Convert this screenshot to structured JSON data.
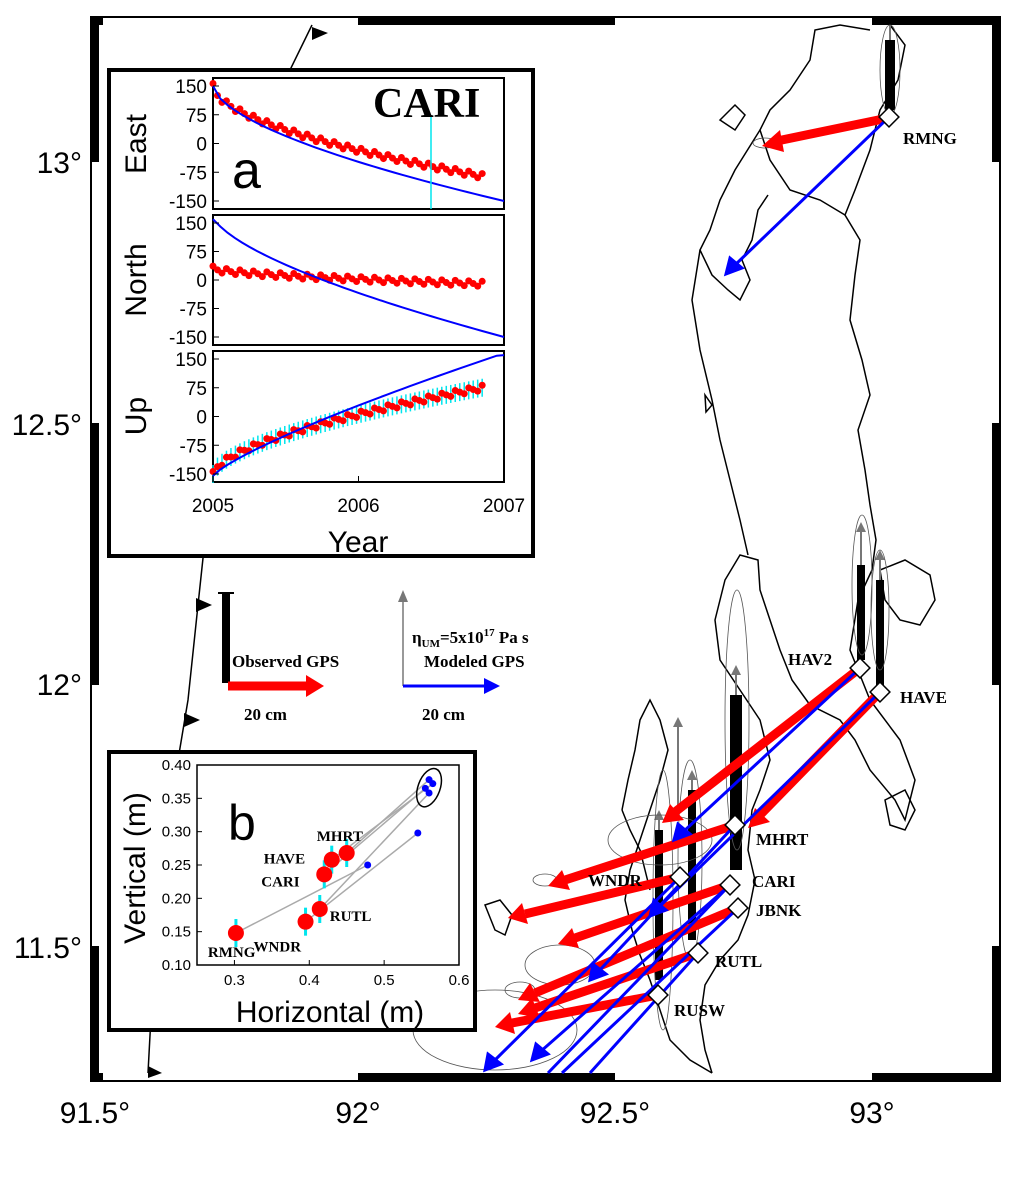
{
  "map": {
    "x_ticks": [
      "91.5°",
      "92°",
      "92.5°",
      "93°"
    ],
    "y_ticks": [
      "13°",
      "12.5°",
      "12°",
      "11.5°"
    ],
    "stations": [
      {
        "name": "RMNG"
      },
      {
        "name": "HAV2"
      },
      {
        "name": "HAVE"
      },
      {
        "name": "MHRT"
      },
      {
        "name": "WNDR"
      },
      {
        "name": "CARI"
      },
      {
        "name": "JBNK"
      },
      {
        "name": "RUTL"
      },
      {
        "name": "RUSW"
      }
    ],
    "colors": {
      "observed": "#ff0000",
      "modeled": "#0000ff",
      "errorbar": "#00e5ee",
      "vertical": "#000000"
    }
  },
  "legend": {
    "observed_label": "Observed GPS",
    "observed_scale": "20 cm",
    "model_eta": "η",
    "model_eta_sub": "UM",
    "model_eq": "=5x10",
    "model_exp": "17",
    "model_unit": " Pa s",
    "modeled_label": "Modeled GPS",
    "modeled_scale": "20 cm"
  },
  "inset_a": {
    "panel_letter": "a",
    "station": "CARI",
    "panels": [
      "East",
      "North",
      "Up"
    ],
    "y_ticks": [
      "150",
      "75",
      "0",
      "-75",
      "-150"
    ],
    "x_ticks": [
      "2005",
      "2006",
      "2007"
    ],
    "x_label": "Year"
  },
  "inset_b": {
    "panel_letter": "b",
    "x_label": "Horizontal (m)",
    "y_label": "Vertical (m)",
    "x_ticks": [
      "0.3",
      "0.4",
      "0.5",
      "0.6"
    ],
    "y_ticks": [
      "0.40",
      "0.35",
      "0.30",
      "0.25",
      "0.20",
      "0.15",
      "0.10"
    ],
    "observed": [
      {
        "name": "MHRT",
        "h": 0.45,
        "v": 0.268
      },
      {
        "name": "HAVE",
        "h": 0.43,
        "v": 0.258
      },
      {
        "name": "CARI",
        "h": 0.42,
        "v": 0.236
      },
      {
        "name": "RUTL",
        "h": 0.414,
        "v": 0.184
      },
      {
        "name": "WNDR",
        "h": 0.395,
        "v": 0.165
      },
      {
        "name": "RMNG",
        "h": 0.302,
        "v": 0.148
      }
    ],
    "modeled": [
      {
        "h": 0.56,
        "v": 0.378
      },
      {
        "h": 0.565,
        "v": 0.372
      },
      {
        "h": 0.555,
        "v": 0.365
      },
      {
        "h": 0.56,
        "v": 0.358
      },
      {
        "h": 0.545,
        "v": 0.298
      },
      {
        "h": 0.478,
        "v": 0.25
      }
    ]
  }
}
